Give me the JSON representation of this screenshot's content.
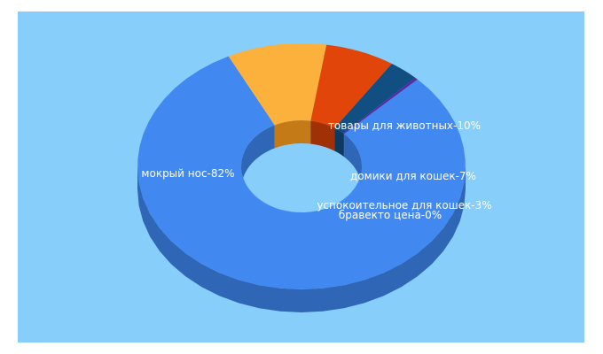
{
  "colors": {
    "background": "#ffffff",
    "panel": "#87cefa"
  },
  "chart_data": {
    "type": "pie",
    "style": "3d-donut",
    "title": "",
    "slices": [
      {
        "label": "мокрый нос",
        "percent_text": "82%",
        "value": 82,
        "color": "#4189f0",
        "side_color": "#2f66b5"
      },
      {
        "label": "товары для животных",
        "percent_text": "10%",
        "value": 10,
        "color": "#fbb13c",
        "side_color": "#c47a16"
      },
      {
        "label": "домики для кошек",
        "percent_text": "7%",
        "value": 7,
        "color": "#e24509",
        "side_color": "#a03006"
      },
      {
        "label": "успокоительное для кошек",
        "percent_text": "3%",
        "value": 3,
        "color": "#114e82",
        "side_color": "#0c3a61"
      },
      {
        "label": "бравекто цена",
        "percent_text": "0%",
        "value": 0.3,
        "color": "#5a2aa3",
        "side_color": "#3e1d70"
      }
    ]
  }
}
